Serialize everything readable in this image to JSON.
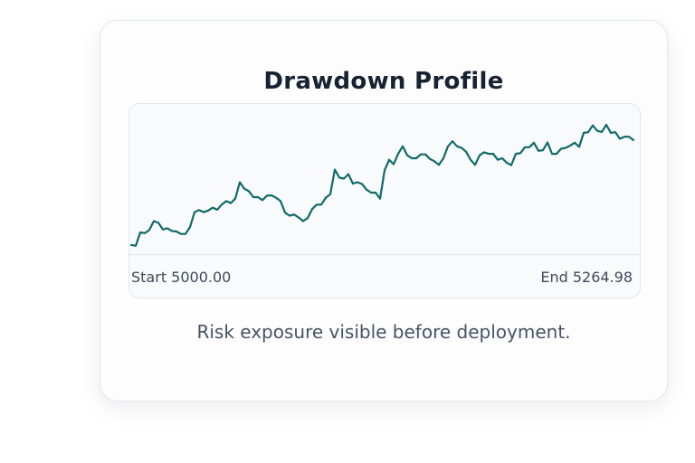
{
  "card": {
    "title": "Drawdown Profile",
    "caption": "Risk exposure visible before deployment."
  },
  "chart_data": {
    "type": "line",
    "title": "Drawdown Profile",
    "start_label": "Start 5000.00",
    "end_label": "End 5264.98",
    "line_color": "#0f6b68",
    "grid": false,
    "ylim": [
      4977,
      5356
    ],
    "values": [
      5000,
      4998,
      5031.7,
      5030,
      5037.8,
      5060.4,
      5055.9,
      5039.2,
      5042.3,
      5035.5,
      5034,
      5027.9,
      5027.9,
      5045.3,
      5083,
      5088.3,
      5083,
      5086.8,
      5094.4,
      5089,
      5101.9,
      5110.9,
      5105.7,
      5117,
      5158.6,
      5142,
      5135.9,
      5120.8,
      5120.8,
      5113.3,
      5124.6,
      5125.4,
      5119.4,
      5110.9,
      5081.5,
      5074,
      5077,
      5069.5,
      5060.4,
      5068,
      5090.6,
      5101.9,
      5101.9,
      5119.4,
      5128.4,
      5190.3,
      5169.9,
      5167.6,
      5178.9,
      5154.8,
      5158.6,
      5154,
      5139.8,
      5132.2,
      5132.2,
      5117,
      5188.7,
      5215.2,
      5203.9,
      5230.3,
      5249.2,
      5226.5,
      5219,
      5219,
      5228.8,
      5228.8,
      5217.4,
      5211.3,
      5202.3,
      5219,
      5249.2,
      5262,
      5249.2,
      5245.3,
      5235.6,
      5215.2,
      5202.3,
      5226.5,
      5234.1,
      5230.3,
      5230.3,
      5215.2,
      5219,
      5207.7,
      5201.6,
      5230.3,
      5231.8,
      5246.9,
      5246.9,
      5258.2,
      5237.8,
      5239.4,
      5258.9,
      5230.3,
      5230.3,
      5243,
      5245.3,
      5250.7,
      5258.2,
      5247.7,
      5283.1,
      5284.7,
      5301.9,
      5288.3,
      5285.4,
      5303.5,
      5283.1,
      5284.7,
      5268,
      5273.4,
      5273.4,
      5264.98
    ]
  }
}
